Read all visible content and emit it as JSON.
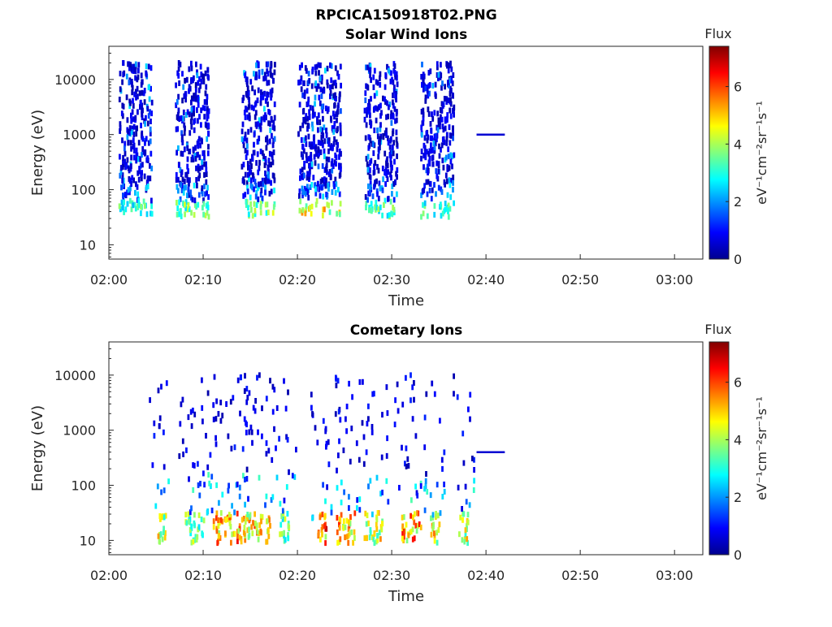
{
  "figure_title": "RPCICA150918T02.PNG",
  "chart_data": [
    {
      "type": "heatmap",
      "title": "Solar Wind Ions",
      "xlabel": "Time",
      "ylabel": "Energy (eV)",
      "yscale": "log",
      "ylim": [
        5.5,
        40000
      ],
      "xlim_minutes": [
        0,
        63
      ],
      "xticks": [
        "02:00",
        "02:10",
        "02:20",
        "02:30",
        "02:40",
        "02:50",
        "03:00"
      ],
      "yticks": [
        "10",
        "100",
        "1000",
        "10000"
      ],
      "colorbar": {
        "label": "Flux",
        "units": "eV⁻¹cm⁻²sr⁻¹s⁻¹",
        "ticks": [
          "0",
          "2",
          "4",
          "6"
        ],
        "range": [
          0,
          7.4
        ],
        "colormap": "jet"
      },
      "bursts": [
        {
          "start": "02:01",
          "end": "02:04",
          "low_energy_flux": 3.2
        },
        {
          "start": "02:07",
          "end": "02:10",
          "low_energy_flux": 3.6
        },
        {
          "start": "02:14",
          "end": "02:17",
          "low_energy_flux": 3.8
        },
        {
          "start": "02:20",
          "end": "02:24",
          "low_energy_flux": 4.6
        },
        {
          "start": "02:27",
          "end": "02:30",
          "low_energy_flux": 3.4
        },
        {
          "start": "02:33",
          "end": "02:36",
          "low_energy_flux": 3.2
        }
      ],
      "steady_line": {
        "start": "02:39",
        "end": "02:42",
        "energy": 1000,
        "flux": 0.6
      }
    },
    {
      "type": "heatmap",
      "title": "Cometary Ions",
      "xlabel": "Time",
      "ylabel": "Energy (eV)",
      "yscale": "log",
      "ylim": [
        5.5,
        40000
      ],
      "xlim_minutes": [
        0,
        63
      ],
      "xticks": [
        "02:00",
        "02:10",
        "02:20",
        "02:30",
        "02:40",
        "02:50",
        "03:00"
      ],
      "yticks": [
        "10",
        "100",
        "1000",
        "10000"
      ],
      "colorbar": {
        "label": "Flux",
        "units": "eV⁻¹cm⁻²sr⁻¹s⁻¹",
        "ticks": [
          "0",
          "2",
          "4",
          "6"
        ],
        "range": [
          0,
          7.4
        ],
        "colormap": "jet"
      },
      "bursts": [
        {
          "start": "02:05",
          "end": "02:06",
          "peak_flux": 5.6
        },
        {
          "start": "02:08",
          "end": "02:10",
          "peak_flux": 4.6
        },
        {
          "start": "02:11",
          "end": "02:14",
          "peak_flux": 6.6
        },
        {
          "start": "02:14",
          "end": "02:17",
          "peak_flux": 6.0
        },
        {
          "start": "02:18",
          "end": "02:19",
          "peak_flux": 4.6
        },
        {
          "start": "02:22",
          "end": "02:23",
          "peak_flux": 7.0
        },
        {
          "start": "02:24",
          "end": "02:26",
          "peak_flux": 6.4
        },
        {
          "start": "02:27",
          "end": "02:29",
          "peak_flux": 5.6
        },
        {
          "start": "02:31",
          "end": "02:33",
          "peak_flux": 6.6
        },
        {
          "start": "02:34",
          "end": "02:35",
          "peak_flux": 5.8
        },
        {
          "start": "02:37",
          "end": "02:38",
          "peak_flux": 5.4
        }
      ],
      "steady_line": {
        "start": "02:39",
        "end": "02:42",
        "energy": 400,
        "flux": 0.6
      }
    }
  ]
}
